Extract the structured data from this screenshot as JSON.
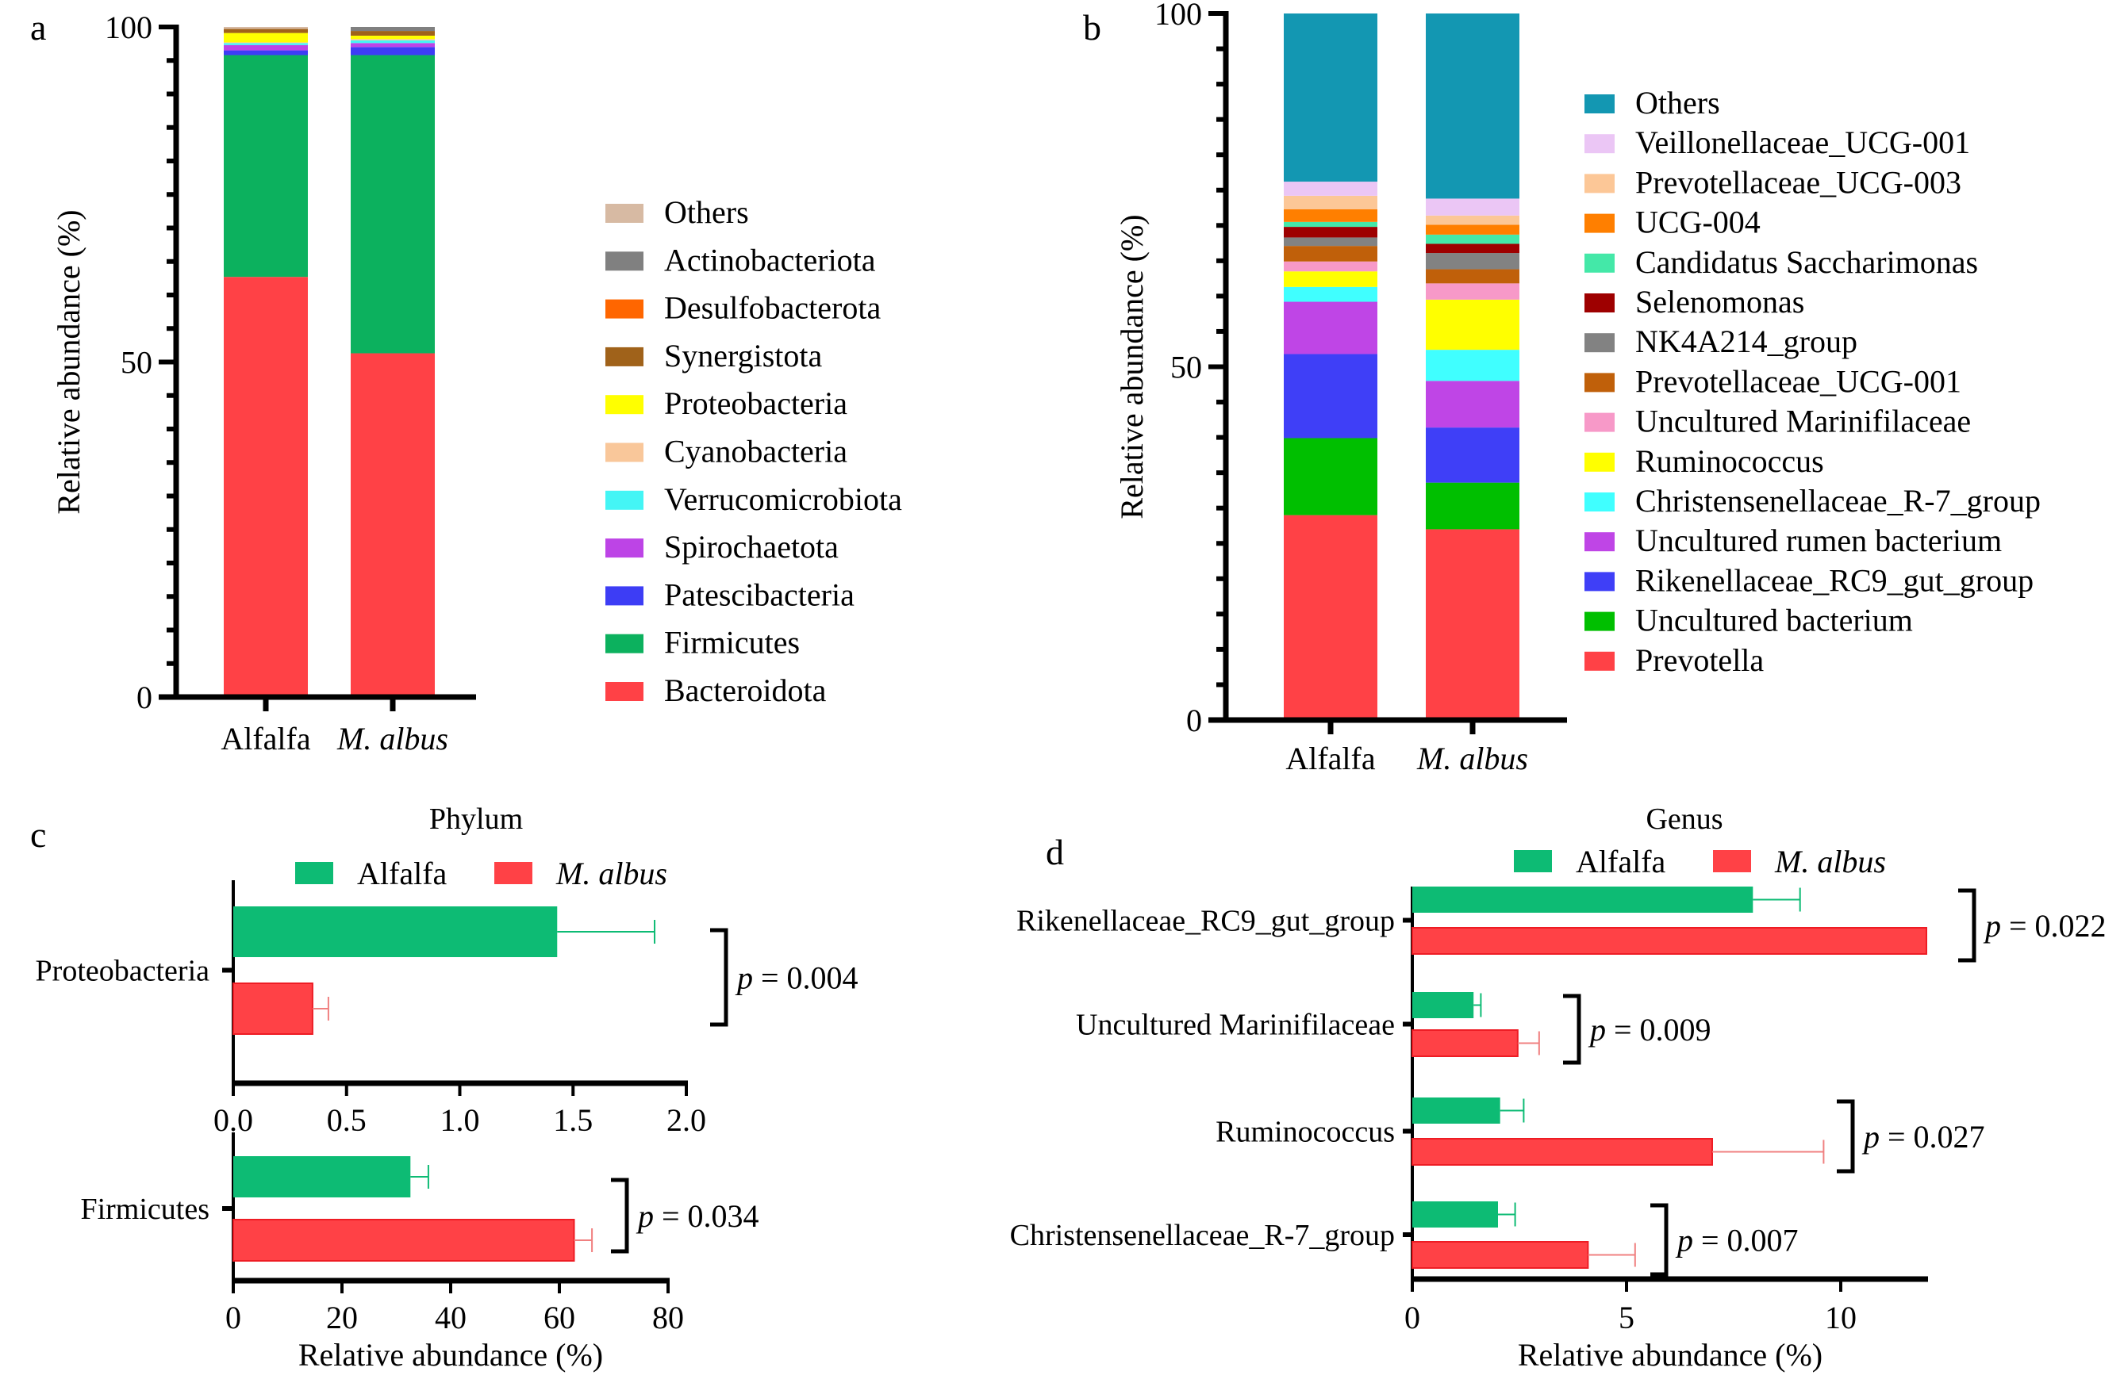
{
  "colors": {
    "alfalfa": "#0dbb74",
    "m_albus": "#ff4146",
    "m_albus_edge": "#ee1c24",
    "axis": "#000000"
  },
  "chart_data": [
    {
      "id": "a",
      "panel_letter": "a",
      "type": "bar",
      "stacked": true,
      "orientation": "vertical",
      "ylabel": "Relative abundance (%)",
      "ylim": [
        0,
        100
      ],
      "yticks": [
        "0",
        "50",
        "100"
      ],
      "categories": [
        {
          "label": "Alfalfa",
          "italic": false
        },
        {
          "label": "M. albus",
          "italic": true
        }
      ],
      "series": [
        {
          "name": "Bacteroidota",
          "color": "#ff4146",
          "values": [
            62.7,
            51.3
          ]
        },
        {
          "name": "Firmicutes",
          "color": "#0cb15e",
          "values": [
            33.1,
            44.5
          ]
        },
        {
          "name": "Patescibacteria",
          "color": "#3d3df5",
          "values": [
            0.7,
            1.2
          ]
        },
        {
          "name": "Spirochaetota",
          "color": "#bd44e6",
          "values": [
            0.8,
            0.6
          ]
        },
        {
          "name": "Verrucomicrobiota",
          "color": "#44f5f5",
          "values": [
            0.3,
            0.4
          ]
        },
        {
          "name": "Cyanobacteria",
          "color": "#f9c79a",
          "values": [
            0.1,
            0.2
          ]
        },
        {
          "name": "Proteobacteria",
          "color": "#ffff00",
          "values": [
            1.4,
            0.5
          ]
        },
        {
          "name": "Synergistota",
          "color": "#a0621a",
          "values": [
            0.6,
            0.7
          ]
        },
        {
          "name": "Desulfobacterota",
          "color": "#ff6600",
          "values": [
            0.0,
            0.0
          ]
        },
        {
          "name": "Actinobacteriota",
          "color": "#808080",
          "values": [
            0.0,
            0.6
          ]
        },
        {
          "name": "Others",
          "color": "#d7baa3",
          "values": [
            0.3,
            0.0
          ]
        }
      ],
      "legend_order": [
        "Others",
        "Actinobacteriota",
        "Desulfobacterota",
        "Synergistota",
        "Proteobacteria",
        "Cyanobacteria",
        "Verrucomicrobiota",
        "Spirochaetota",
        "Patescibacteria",
        "Firmicutes",
        "Bacteroidota"
      ],
      "legend": "right"
    },
    {
      "id": "b",
      "panel_letter": "b",
      "type": "bar",
      "stacked": true,
      "orientation": "vertical",
      "ylabel": "Relative abundance (%)",
      "ylim": [
        0,
        100
      ],
      "yticks": [
        "0",
        "50",
        "100"
      ],
      "categories": [
        {
          "label": "Alfalfa",
          "italic": false
        },
        {
          "label": "M. albus",
          "italic": true
        }
      ],
      "series": [
        {
          "name": "Prevotella",
          "color": "#ff4146",
          "values": [
            29.0,
            27.0
          ]
        },
        {
          "name": "Uncultured bacterium",
          "color": "#00bf00",
          "values": [
            10.9,
            6.6
          ]
        },
        {
          "name": "Rikenellaceae_RC9_gut_group",
          "color": "#3f3ff7",
          "values": [
            11.9,
            7.8
          ]
        },
        {
          "name": "Uncultured rumen bacterium",
          "color": "#bf45e6",
          "values": [
            7.4,
            6.6
          ]
        },
        {
          "name": "Christensenellaceae_R-7_group",
          "color": "#40ffff",
          "values": [
            2.1,
            4.4
          ]
        },
        {
          "name": "Ruminococcus",
          "color": "#ffff00",
          "values": [
            2.2,
            7.1
          ]
        },
        {
          "name": "Uncultured Marinifilaceae",
          "color": "#f799c8",
          "values": [
            1.4,
            2.3
          ]
        },
        {
          "name": "Prevotellaceae_UCG-001",
          "color": "#c0600a",
          "values": [
            2.2,
            2.0
          ]
        },
        {
          "name": "NK4A214_group",
          "color": "#828282",
          "values": [
            1.2,
            2.3
          ]
        },
        {
          "name": "Selenomonas",
          "color": "#9e0000",
          "values": [
            1.5,
            1.3
          ]
        },
        {
          "name": "Candidatus Saccharimonas",
          "color": "#44e8a8",
          "values": [
            0.7,
            1.3
          ]
        },
        {
          "name": "UCG-004",
          "color": "#ff7f00",
          "values": [
            1.8,
            1.4
          ]
        },
        {
          "name": "Prevotellaceae_UCG-003",
          "color": "#fcc797",
          "values": [
            1.9,
            1.3
          ]
        },
        {
          "name": "Veillonellaceae_UCG-001",
          "color": "#ebc6f5",
          "values": [
            2.0,
            2.4
          ]
        },
        {
          "name": "Others",
          "color": "#1397b2",
          "values": [
            23.8,
            26.2
          ]
        }
      ],
      "legend_order": [
        "Others",
        "Veillonellaceae_UCG-001",
        "Prevotellaceae_UCG-003",
        "UCG-004",
        "Candidatus Saccharimonas",
        "Selenomonas",
        "NK4A214_group",
        "Prevotellaceae_UCG-001",
        "Uncultured Marinifilaceae",
        "Ruminococcus",
        "Christensenellaceae_R-7_group",
        "Uncultured rumen bacterium",
        "Rikenellaceae_RC9_gut_group",
        "Uncultured bacterium",
        "Prevotella"
      ],
      "legend": "right"
    },
    {
      "id": "c",
      "panel_letter": "c",
      "type": "bar",
      "orientation": "horizontal",
      "title": "Phylum",
      "xlabel": "Relative abundance (%)",
      "legend": "top",
      "legend_items": [
        {
          "label": "Alfalfa",
          "italic": false,
          "color_key": "alfalfa"
        },
        {
          "label": "M. albus",
          "italic": true,
          "color_key": "m_albus"
        }
      ],
      "subplots": [
        {
          "category": "Proteobacteria",
          "xlim": [
            0,
            2.0
          ],
          "xticks": [
            "0.0",
            "0.5",
            "1.0",
            "1.5",
            "2.0"
          ],
          "alfalfa": {
            "mean": 1.43,
            "err": 0.43
          },
          "m_albus": {
            "mean": 0.35,
            "err": 0.07
          },
          "p_label": "p",
          "p_value": "= 0.004"
        },
        {
          "category": "Firmicutes",
          "xlim": [
            0,
            80
          ],
          "xticks": [
            "0",
            "20",
            "40",
            "60",
            "80"
          ],
          "alfalfa": {
            "mean": 32.6,
            "err": 3.3
          },
          "m_albus": {
            "mean": 62.7,
            "err": 3.3
          },
          "p_label": "p",
          "p_value": "= 0.034"
        }
      ]
    },
    {
      "id": "d",
      "panel_letter": "d",
      "type": "bar",
      "orientation": "horizontal",
      "title": "Genus",
      "xlabel": "Relative abundance (%)",
      "xlim": [
        0,
        12
      ],
      "xticks": [
        "0",
        "5",
        "10"
      ],
      "legend": "top",
      "legend_items": [
        {
          "label": "Alfalfa",
          "italic": false,
          "color_key": "alfalfa"
        },
        {
          "label": "M. albus",
          "italic": true,
          "color_key": "m_albus"
        }
      ],
      "rows": [
        {
          "category": "Rikenellaceae_RC9_gut_group",
          "alfalfa": {
            "mean": 7.95,
            "err": 1.1
          },
          "m_albus": {
            "mean": 12.0,
            "err": 0
          },
          "p_label": "p",
          "p_value": "= 0.022"
        },
        {
          "category": "Uncultured Marinifilaceae",
          "alfalfa": {
            "mean": 1.43,
            "err": 0.17
          },
          "m_albus": {
            "mean": 2.46,
            "err": 0.5
          },
          "p_label": "p",
          "p_value": "= 0.009"
        },
        {
          "category": "Ruminococcus",
          "alfalfa": {
            "mean": 2.05,
            "err": 0.55
          },
          "m_albus": {
            "mean": 7.0,
            "err": 2.6
          },
          "p_label": "p",
          "p_value": "= 0.027"
        },
        {
          "category": "Christensenellaceae_R-7_group",
          "alfalfa": {
            "mean": 2.0,
            "err": 0.4
          },
          "m_albus": {
            "mean": 4.1,
            "err": 1.1
          },
          "p_label": "p",
          "p_value": "= 0.007"
        }
      ]
    }
  ]
}
